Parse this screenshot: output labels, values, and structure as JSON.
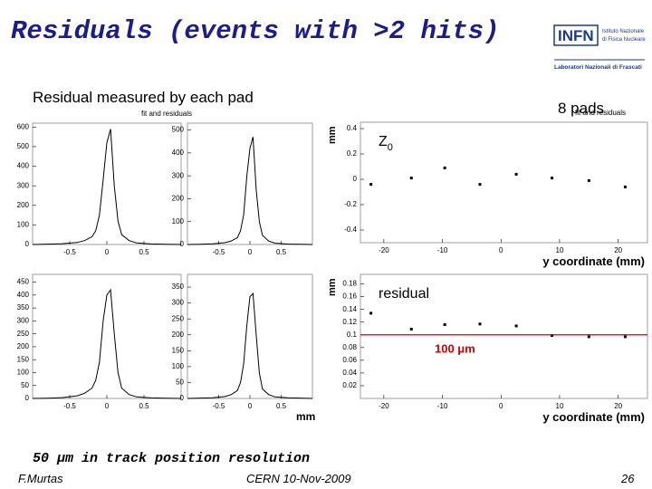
{
  "slide": {
    "title": "Residuals (events with >2 hits)",
    "subtitle": "Residual measured by each pad",
    "note": "8 pads",
    "resolution": "50 μm in track position resolution",
    "author": "F.Murtas",
    "event": "CERN 10-Nov-2009",
    "page": "26",
    "logo": {
      "name": "INFN",
      "line1": "Istituto Nazionale",
      "line2": "di Fisica Nucleare",
      "line3": "Laboratori Nazionali di Frascati"
    }
  },
  "chart_data": [
    {
      "type": "line",
      "title": "fit and residuals",
      "x": [
        -1,
        -0.8,
        -0.6,
        -0.4,
        -0.3,
        -0.2,
        -0.15,
        -0.1,
        -0.05,
        0,
        0.05,
        0.1,
        0.15,
        0.2,
        0.3,
        0.4,
        0.6,
        0.8,
        1
      ],
      "values": [
        0,
        2,
        4,
        10,
        20,
        40,
        70,
        150,
        330,
        520,
        590,
        300,
        120,
        50,
        20,
        8,
        3,
        1,
        0
      ],
      "xlim": [
        -1,
        1
      ],
      "xticks": [
        -0.5,
        0,
        0.5
      ],
      "ylim": [
        0,
        620
      ],
      "yticks": [
        0,
        100,
        200,
        300,
        400,
        500,
        600
      ],
      "color": "#000000"
    },
    {
      "type": "line",
      "x": [
        -1,
        -0.8,
        -0.6,
        -0.4,
        -0.3,
        -0.2,
        -0.15,
        -0.1,
        -0.05,
        0,
        0.05,
        0.1,
        0.15,
        0.2,
        0.3,
        0.4,
        0.6,
        0.8,
        1
      ],
      "values": [
        0,
        1,
        3,
        8,
        15,
        30,
        60,
        130,
        300,
        420,
        470,
        240,
        100,
        40,
        15,
        6,
        2,
        1,
        0
      ],
      "xlim": [
        -1,
        1
      ],
      "xticks": [
        -0.5,
        0,
        0.5
      ],
      "ylim": [
        0,
        530
      ],
      "yticks": [
        0,
        100,
        200,
        300,
        400,
        500
      ],
      "color": "#000000"
    },
    {
      "type": "line",
      "x": [
        -1,
        -0.8,
        -0.6,
        -0.4,
        -0.3,
        -0.2,
        -0.15,
        -0.1,
        -0.05,
        0,
        0.05,
        0.1,
        0.15,
        0.2,
        0.3,
        0.4,
        0.6,
        0.8,
        1
      ],
      "values": [
        0,
        1,
        3,
        10,
        20,
        40,
        70,
        140,
        300,
        400,
        420,
        250,
        100,
        40,
        15,
        6,
        2,
        1,
        0
      ],
      "xlim": [
        -1,
        1
      ],
      "xticks": [
        -0.5,
        0,
        0.5
      ],
      "ylim": [
        0,
        480
      ],
      "yticks": [
        0,
        50,
        100,
        150,
        200,
        250,
        300,
        350,
        400,
        450
      ],
      "color": "#000000"
    },
    {
      "type": "line",
      "xlabel": "mm",
      "x": [
        -1,
        -0.8,
        -0.6,
        -0.4,
        -0.3,
        -0.2,
        -0.15,
        -0.1,
        -0.05,
        0,
        0.05,
        0.1,
        0.15,
        0.2,
        0.3,
        0.4,
        0.6,
        0.8,
        1
      ],
      "values": [
        0,
        1,
        2,
        6,
        12,
        25,
        50,
        110,
        230,
        320,
        330,
        200,
        80,
        30,
        12,
        5,
        2,
        1,
        0
      ],
      "xlim": [
        -1,
        1
      ],
      "xticks": [
        -0.5,
        0,
        0.5
      ],
      "ylim": [
        0,
        390
      ],
      "yticks": [
        0,
        50,
        100,
        150,
        200,
        250,
        300,
        350
      ],
      "color": "#000000"
    },
    {
      "type": "scatter",
      "title": "fit and residuals",
      "annotation": "Z",
      "annotation_sub": "0",
      "xlabel": "y coordinate (mm)",
      "ylabel": "mm",
      "x": [
        -22.2,
        -15.3,
        -9.6,
        -3.6,
        2.6,
        8.7,
        15,
        21.2
      ],
      "values": [
        -0.04,
        0.01,
        0.09,
        -0.04,
        0.04,
        0.01,
        -0.01,
        -0.06
      ],
      "xlim": [
        -24,
        25
      ],
      "xticks": [
        -20,
        -10,
        0,
        10,
        20
      ],
      "ylim": [
        -0.5,
        0.45
      ],
      "yticks": [
        -0.4,
        -0.2,
        0,
        0.2,
        0.4
      ],
      "color": "#000000"
    },
    {
      "type": "scatter",
      "annotation": "residual",
      "xlabel": "y coordinate (mm)",
      "ylabel": "mm",
      "x": [
        -22.2,
        -15.3,
        -9.6,
        -3.6,
        2.6,
        8.7,
        15,
        21.2
      ],
      "values": [
        0.134,
        0.109,
        0.116,
        0.117,
        0.114,
        0.099,
        0.097,
        0.097
      ],
      "xlim": [
        -24,
        25
      ],
      "xticks": [
        -20,
        -10,
        0,
        10,
        20
      ],
      "ylim": [
        0,
        0.195
      ],
      "yticks": [
        0.02,
        0.04,
        0.06,
        0.08,
        0.1,
        0.12,
        0.14,
        0.16,
        0.18
      ],
      "color": "#000000",
      "reference_line": {
        "value": 0.1,
        "label": "100 μm",
        "color": "#cc0000"
      }
    }
  ]
}
